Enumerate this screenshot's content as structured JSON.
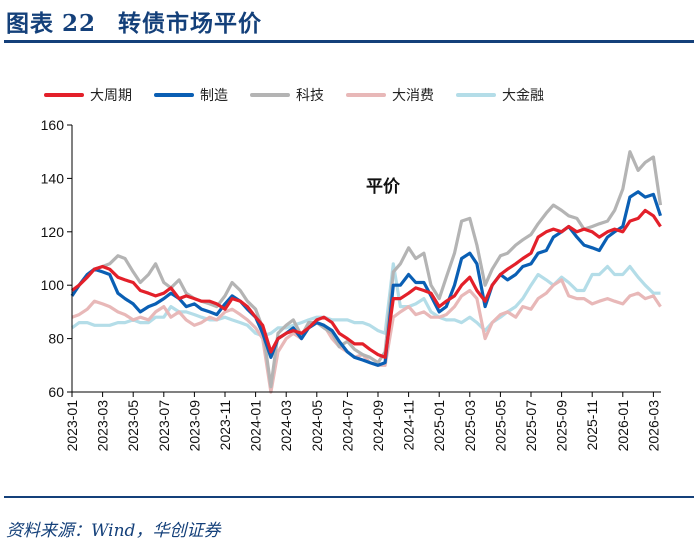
{
  "header": {
    "figure_label": "图表",
    "figure_number": "22",
    "title": "转债市场平价"
  },
  "source": "资料来源：Wind，华创证券",
  "chart_data": {
    "type": "line",
    "title": "",
    "annotation": "平价",
    "xlabel": "",
    "ylabel": "",
    "ylim": [
      60,
      160
    ],
    "yticks": [
      60,
      80,
      100,
      120,
      140,
      160
    ],
    "xticks": [
      "2023-01",
      "2023-03",
      "2023-05",
      "2023-07",
      "2023-09",
      "2023-11",
      "2024-01",
      "2024-03",
      "2024-05",
      "2024-07",
      "2024-09",
      "2024-11",
      "2025-01",
      "2025-03",
      "2025-05",
      "2025-07",
      "2025-09",
      "2025-11",
      "2026-01",
      "2026-03"
    ],
    "grid": false,
    "legend_position": "top",
    "x": [
      "2023-01-01",
      "2023-01-15",
      "2023-02-01",
      "2023-02-15",
      "2023-03-01",
      "2023-03-15",
      "2023-04-01",
      "2023-04-15",
      "2023-05-01",
      "2023-05-15",
      "2023-06-01",
      "2023-06-15",
      "2023-07-01",
      "2023-07-15",
      "2023-08-01",
      "2023-08-15",
      "2023-09-01",
      "2023-09-15",
      "2023-10-01",
      "2023-10-15",
      "2023-11-01",
      "2023-11-15",
      "2023-12-01",
      "2023-12-15",
      "2024-01-01",
      "2024-01-15",
      "2024-02-01",
      "2024-02-15",
      "2024-03-01",
      "2024-03-15",
      "2024-04-01",
      "2024-04-15",
      "2024-05-01",
      "2024-05-15",
      "2024-06-01",
      "2024-06-15",
      "2024-07-01",
      "2024-07-15",
      "2024-08-01",
      "2024-08-15",
      "2024-09-01",
      "2024-09-15",
      "2024-10-01",
      "2024-10-15",
      "2024-11-01",
      "2024-11-15",
      "2024-12-01",
      "2024-12-15",
      "2025-01-01",
      "2025-01-15",
      "2025-02-01",
      "2025-02-15",
      "2025-03-01",
      "2025-03-15",
      "2025-04-01",
      "2025-04-15",
      "2025-05-01",
      "2025-05-15",
      "2025-06-01",
      "2025-06-15",
      "2025-07-01",
      "2025-07-15",
      "2025-08-01",
      "2025-08-15",
      "2025-09-01",
      "2025-09-15",
      "2025-10-01",
      "2025-10-15",
      "2025-11-01",
      "2025-11-15",
      "2025-12-01",
      "2025-12-15",
      "2026-01-01",
      "2026-01-15",
      "2026-02-01",
      "2026-02-15",
      "2026-03-01",
      "2026-03-15"
    ],
    "series": [
      {
        "name": "大周期",
        "color": "#e3202a",
        "values": [
          98,
          100,
          103,
          106,
          107,
          106,
          103,
          102,
          101,
          98,
          97,
          96,
          97,
          99,
          95,
          96,
          95,
          94,
          94,
          93,
          91,
          95,
          94,
          92,
          88,
          85,
          75,
          80,
          82,
          83,
          82,
          84,
          87,
          88,
          86,
          82,
          80,
          78,
          78,
          76,
          74,
          73,
          95,
          95,
          97,
          99,
          98,
          97,
          92,
          94,
          96,
          100,
          103,
          98,
          94,
          100,
          104,
          106,
          108,
          110,
          112,
          118,
          120,
          121,
          120,
          122,
          120,
          121,
          120,
          118,
          120,
          121,
          120,
          124,
          125,
          128,
          126,
          122
        ]
      },
      {
        "name": "制造",
        "color": "#0a5fb4",
        "values": [
          96,
          100,
          104,
          106,
          105,
          104,
          97,
          95,
          93,
          90,
          92,
          93,
          95,
          97,
          95,
          92,
          93,
          91,
          90,
          89,
          93,
          96,
          94,
          91,
          88,
          82,
          73,
          80,
          82,
          84,
          80,
          84,
          86,
          85,
          83,
          79,
          75,
          73,
          72,
          71,
          70,
          71,
          100,
          100,
          104,
          101,
          101,
          96,
          90,
          92,
          100,
          110,
          112,
          108,
          92,
          100,
          104,
          102,
          104,
          107,
          108,
          112,
          113,
          118,
          120,
          122,
          118,
          115,
          114,
          113,
          118,
          120,
          122,
          133,
          135,
          133,
          134,
          126
        ]
      },
      {
        "name": "科技",
        "color": "#b4b4b4",
        "values": [
          96,
          100,
          104,
          106,
          107,
          108,
          111,
          110,
          105,
          101,
          104,
          108,
          101,
          99,
          102,
          97,
          95,
          94,
          93,
          92,
          96,
          101,
          98,
          94,
          91,
          84,
          62,
          82,
          85,
          87,
          81,
          86,
          86,
          84,
          82,
          77,
          79,
          76,
          74,
          73,
          71,
          75,
          105,
          108,
          114,
          110,
          112,
          100,
          95,
          103,
          112,
          124,
          125,
          115,
          100,
          106,
          111,
          112,
          115,
          117,
          119,
          123,
          127,
          130,
          128,
          126,
          125,
          121,
          122,
          123,
          124,
          128,
          136,
          150,
          143,
          146,
          148,
          130
        ]
      },
      {
        "name": "大消费",
        "color": "#e8b8b8",
        "values": [
          88,
          89,
          91,
          94,
          93,
          92,
          90,
          89,
          87,
          88,
          87,
          90,
          92,
          88,
          90,
          87,
          85,
          86,
          88,
          87,
          90,
          91,
          89,
          87,
          84,
          80,
          60,
          75,
          80,
          82,
          80,
          84,
          86,
          85,
          80,
          77,
          75,
          73,
          74,
          71,
          70,
          70,
          88,
          90,
          92,
          89,
          90,
          88,
          88,
          89,
          92,
          96,
          98,
          95,
          80,
          86,
          89,
          90,
          88,
          92,
          91,
          95,
          97,
          100,
          102,
          96,
          95,
          95,
          93,
          94,
          95,
          94,
          93,
          96,
          97,
          95,
          96,
          92
        ]
      },
      {
        "name": "大金融",
        "color": "#b4dde8",
        "values": [
          84,
          86,
          86,
          85,
          85,
          85,
          86,
          86,
          87,
          86,
          86,
          88,
          88,
          92,
          90,
          90,
          89,
          88,
          87,
          87,
          88,
          87,
          86,
          85,
          82,
          81,
          82,
          84,
          84,
          85,
          86,
          87,
          88,
          88,
          87,
          87,
          87,
          86,
          86,
          85,
          83,
          82,
          108,
          92,
          92,
          93,
          95,
          90,
          88,
          87,
          87,
          86,
          88,
          86,
          83,
          86,
          88,
          90,
          92,
          95,
          100,
          104,
          102,
          100,
          103,
          101,
          98,
          98,
          104,
          104,
          107,
          104,
          104,
          107,
          103,
          100,
          97,
          97
        ]
      }
    ]
  }
}
